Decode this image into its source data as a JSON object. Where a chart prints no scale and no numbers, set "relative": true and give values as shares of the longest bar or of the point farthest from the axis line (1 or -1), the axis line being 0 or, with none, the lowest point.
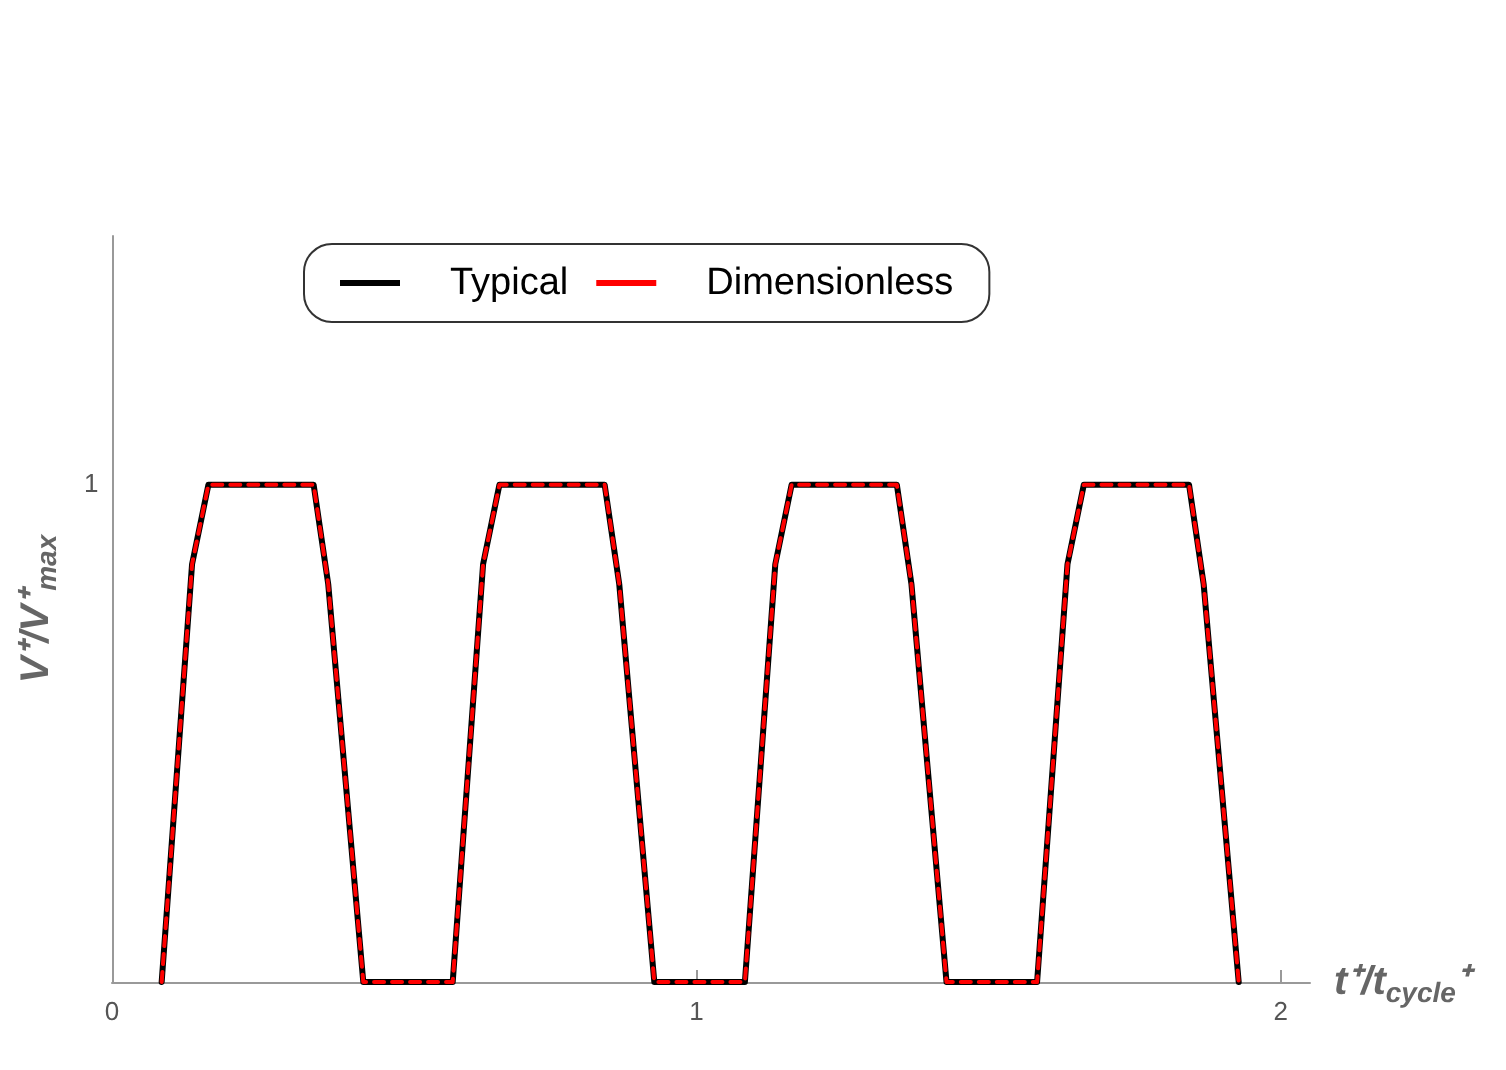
{
  "chart_data": {
    "type": "line",
    "ylabel": "V⁺/V⁺$_{max}$",
    "xlabel": "t⁺/t$_{cycle}$⁺",
    "x": [
      0.085,
      0.137,
      0.165,
      0.345,
      0.37,
      0.43,
      0.583,
      0.635,
      0.663,
      0.843,
      0.868,
      0.928,
      1.083,
      1.135,
      1.163,
      1.343,
      1.368,
      1.428,
      1.583,
      1.635,
      1.663,
      1.843,
      1.868,
      1.928
    ],
    "series": [
      {
        "name": "Typical",
        "color": "#000000",
        "line_style": "solid",
        "values": [
          0,
          0.84,
          1,
          1,
          0.8,
          0,
          0,
          0.84,
          1,
          1,
          0.8,
          0,
          0,
          0.84,
          1,
          1,
          0.8,
          0,
          0,
          0.84,
          1,
          1,
          0.8,
          0
        ]
      },
      {
        "name": "Dimensionless",
        "color": "#ff0000",
        "line_style": "dashed",
        "values": [
          0,
          0.84,
          1,
          1,
          0.8,
          0,
          0,
          0.84,
          1,
          1,
          0.8,
          0,
          0,
          0.84,
          1,
          1,
          0.8,
          0,
          0,
          0.84,
          1,
          1,
          0.8,
          0
        ]
      }
    ],
    "relative": true,
    "annotations": [
      "1"
    ],
    "xlim": [
      0,
      2.05
    ],
    "xticks": [
      0,
      1,
      2
    ],
    "legend": "top",
    "grid": false,
    "marker": "none"
  }
}
